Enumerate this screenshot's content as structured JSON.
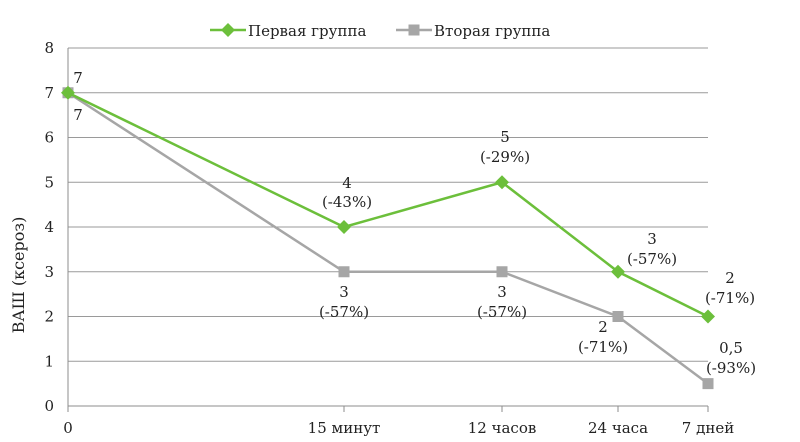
{
  "chart_data": {
    "type": "line",
    "categories": [
      "0",
      "15 минут",
      "12 часов",
      "24 часа",
      "7 дней"
    ],
    "ylabel": "ВАШ (ксероз)",
    "ylim": [
      0,
      8
    ],
    "yticks": [
      "0",
      "1",
      "2",
      "3",
      "4",
      "5",
      "6",
      "7",
      "8"
    ],
    "grid": true,
    "legend_position": "top-center",
    "series": [
      {
        "name": "Первая группа",
        "color": "#6cbf3b",
        "marker": "diamond",
        "values": [
          7,
          4,
          5,
          3,
          2
        ],
        "labels": [
          {
            "value": "7",
            "pct": ""
          },
          {
            "value": "4",
            "pct": "(-43%)"
          },
          {
            "value": "5",
            "pct": "(-29%)"
          },
          {
            "value": "3",
            "pct": "(-57%)"
          },
          {
            "value": "2",
            "pct": "(-71%)"
          }
        ]
      },
      {
        "name": "Вторая группа",
        "color": "#a6a6a6",
        "marker": "square",
        "values": [
          7,
          3,
          3,
          2,
          0.5
        ],
        "labels": [
          {
            "value": "7",
            "pct": ""
          },
          {
            "value": "3",
            "pct": "(-57%)"
          },
          {
            "value": "3",
            "pct": "(-57%)"
          },
          {
            "value": "2",
            "pct": "(-71%)"
          },
          {
            "value": "0,5",
            "pct": "(-93%)"
          }
        ]
      }
    ]
  }
}
